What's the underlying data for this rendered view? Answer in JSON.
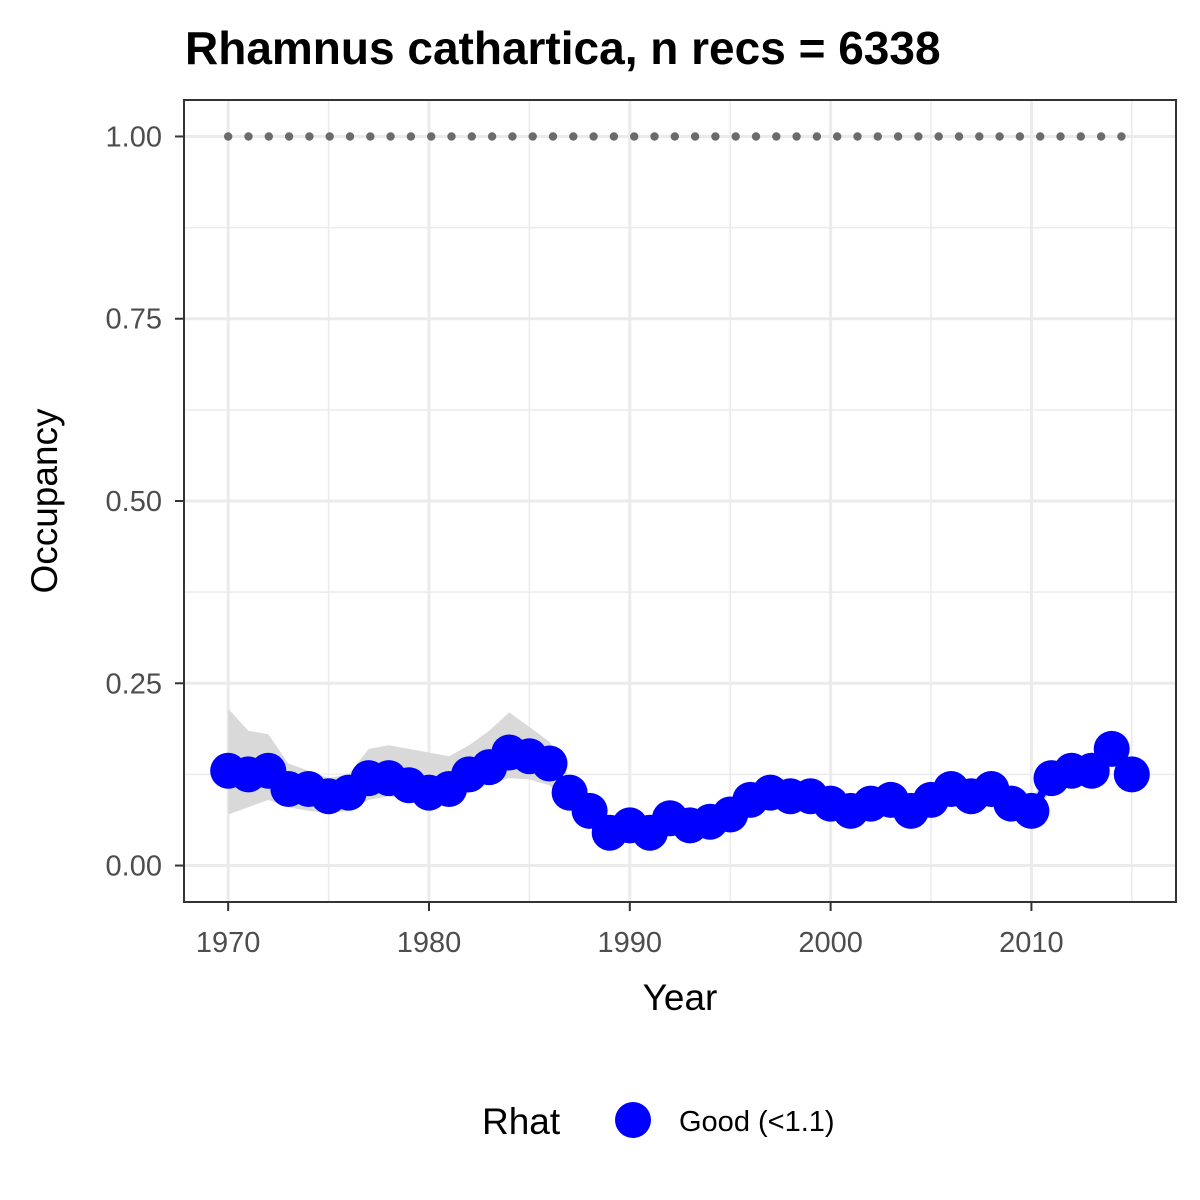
{
  "chart_data": {
    "type": "line",
    "title": "Rhamnus cathartica, n recs = 6338",
    "xlabel": "Year",
    "ylabel": "Occupancy",
    "xlim": [
      1967.8,
      2017.2
    ],
    "ylim": [
      -0.05,
      1.05
    ],
    "x_ticks": [
      1970,
      1980,
      1990,
      2000,
      2010
    ],
    "x_tick_labels": [
      "1970",
      "1980",
      "1990",
      "2000",
      "2010"
    ],
    "y_ticks": [
      0,
      0.25,
      0.5,
      0.75,
      1.0
    ],
    "y_tick_labels": [
      "0.00",
      "0.25",
      "0.50",
      "0.75",
      "1.00"
    ],
    "grid": true,
    "legend": {
      "position": "bottom",
      "title": "Rhat",
      "entries": [
        "Good (<1.1)"
      ]
    },
    "colors": {
      "points": "#0000ff",
      "ribbon": "#d9d9d9",
      "reference": "#6b6b6b",
      "grid": "#ebebeb",
      "border": "#333333"
    },
    "x": [
      1970,
      1971,
      1972,
      1973,
      1974,
      1975,
      1976,
      1977,
      1978,
      1979,
      1980,
      1981,
      1982,
      1983,
      1984,
      1985,
      1986,
      1987,
      1988,
      1989,
      1990,
      1991,
      1992,
      1993,
      1994,
      1995,
      1996,
      1997,
      1998,
      1999,
      2000,
      2001,
      2002,
      2003,
      2004,
      2005,
      2006,
      2007,
      2008,
      2009,
      2010,
      2011,
      2012,
      2013,
      2014,
      2015
    ],
    "series": [
      {
        "name": "Good (<1.1)",
        "values": [
          0.13,
          0.125,
          0.13,
          0.105,
          0.105,
          0.095,
          0.1,
          0.12,
          0.12,
          0.11,
          0.1,
          0.105,
          0.125,
          0.135,
          0.155,
          0.15,
          0.14,
          0.1,
          0.075,
          0.045,
          0.055,
          0.045,
          0.065,
          0.055,
          0.06,
          0.07,
          0.09,
          0.1,
          0.095,
          0.095,
          0.085,
          0.075,
          0.085,
          0.09,
          0.075,
          0.09,
          0.105,
          0.095,
          0.105,
          0.085,
          0.075,
          0.12,
          0.13,
          0.13,
          0.16,
          0.125
        ],
        "lower": [
          0.07,
          0.08,
          0.09,
          0.08,
          0.075,
          0.072,
          0.075,
          0.09,
          0.095,
          0.09,
          0.085,
          0.085,
          0.1,
          0.112,
          0.12,
          0.118,
          0.11,
          0.082,
          0.058,
          0.038,
          0.042,
          0.038,
          0.05,
          0.045,
          0.048,
          0.058,
          0.072,
          0.085,
          0.082,
          0.08,
          0.07,
          0.062,
          0.07,
          0.075,
          0.062,
          0.075,
          0.09,
          0.082,
          0.09,
          0.072,
          0.062,
          0.105,
          0.115,
          0.115,
          0.14,
          0.112
        ],
        "upper": [
          0.215,
          0.185,
          0.18,
          0.14,
          0.13,
          0.12,
          0.125,
          0.16,
          0.165,
          0.16,
          0.155,
          0.15,
          0.165,
          0.185,
          0.21,
          0.19,
          0.17,
          0.12,
          0.095,
          0.06,
          0.068,
          0.06,
          0.08,
          0.07,
          0.075,
          0.085,
          0.105,
          0.115,
          0.11,
          0.11,
          0.1,
          0.09,
          0.1,
          0.105,
          0.09,
          0.105,
          0.12,
          0.11,
          0.12,
          0.1,
          0.09,
          0.138,
          0.148,
          0.148,
          0.18,
          0.142
        ]
      }
    ],
    "reference_line": {
      "y": 1.0,
      "style": "dotted"
    }
  }
}
